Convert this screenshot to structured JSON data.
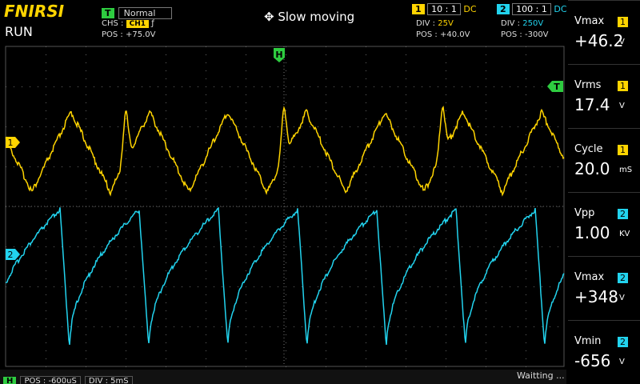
{
  "header": {
    "brand": "FNIRSI",
    "status": "RUN",
    "trigger": {
      "badge": "T",
      "mode": "Normal",
      "source_label": "CHS :",
      "source": "CH1",
      "edge": "ƒ",
      "pos_label": "POS :",
      "pos": "+75.0V"
    },
    "action": "Slow moving",
    "channels": [
      {
        "badge": "1",
        "probe": "10 : 1",
        "coupling": "DC",
        "div_label": "DIV :",
        "div": "25V",
        "pos_label": "POS :",
        "pos": "+40.0V"
      },
      {
        "badge": "2",
        "probe": "100 : 1",
        "coupling": "DC",
        "div_label": "DIV :",
        "div": "250V",
        "pos_label": "POS :",
        "pos": "-300V"
      }
    ]
  },
  "markers": {
    "horizontal": "H",
    "trigger": "T",
    "ch1": "1",
    "ch2": "2"
  },
  "measurements": [
    {
      "label": "Vmax",
      "channel": "1",
      "value": "+46.2",
      "unit": "V"
    },
    {
      "label": "Vrms",
      "channel": "1",
      "value": "17.4",
      "unit": "V"
    },
    {
      "label": "Cycle",
      "channel": "1",
      "value": "20.0",
      "unit": "mS"
    },
    {
      "label": "Vpp",
      "channel": "2",
      "value": "1.00",
      "unit": "KV"
    },
    {
      "label": "Vmax",
      "channel": "2",
      "value": "+348",
      "unit": "V"
    },
    {
      "label": "Vmin",
      "channel": "2",
      "value": "-656",
      "unit": "V"
    }
  ],
  "footer": {
    "badge": "H",
    "pos": "POS : -600uS",
    "div": "DIV : 5mS",
    "status": "Waitting ..."
  }
}
